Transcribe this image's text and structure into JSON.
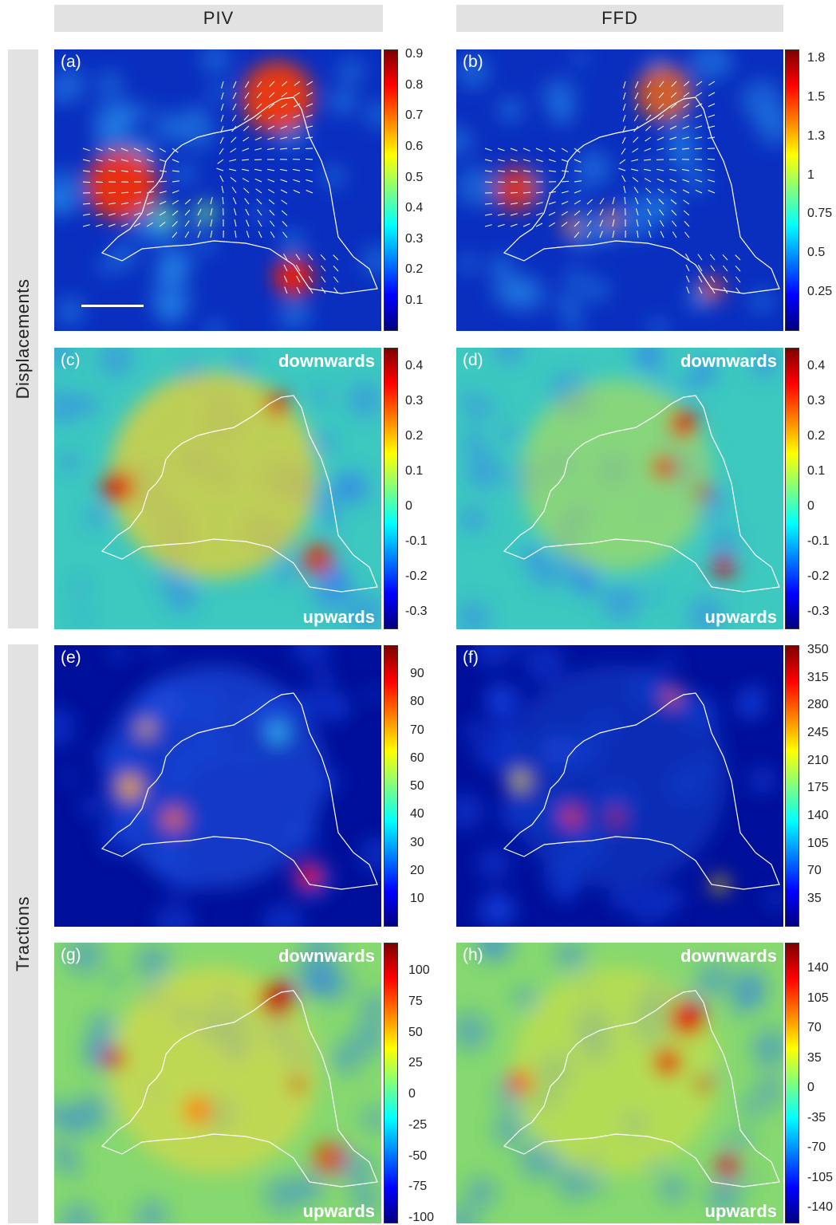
{
  "columns": [
    "PIV",
    "FFD"
  ],
  "rows": [
    "Displacements",
    "Tractions"
  ],
  "direction_labels": {
    "top": "downwards",
    "bottom": "upwards"
  },
  "panels": [
    {
      "id": "a",
      "label": "(a)",
      "type": "magnitude",
      "ticks": [
        "0.9",
        "0.8",
        "0.7",
        "0.6",
        "0.5",
        "0.4",
        "0.3",
        "0.2",
        "0.1"
      ]
    },
    {
      "id": "b",
      "label": "(b)",
      "type": "magnitude",
      "ticks": [
        "1.8",
        "1.5",
        "1.3",
        "1",
        "0.75",
        "0.5",
        "0.25"
      ]
    },
    {
      "id": "c",
      "label": "(c)",
      "type": "normal",
      "ticks": [
        "0.4",
        "0.3",
        "0.2",
        "0.1",
        "0",
        "-0.1",
        "-0.2",
        "-0.3"
      ]
    },
    {
      "id": "d",
      "label": "(d)",
      "type": "normal",
      "ticks": [
        "0.4",
        "0.3",
        "0.2",
        "0.1",
        "0",
        "-0.1",
        "-0.2",
        "-0.3"
      ]
    },
    {
      "id": "e",
      "label": "(e)",
      "type": "magnitude",
      "ticks": [
        "90",
        "80",
        "70",
        "60",
        "50",
        "40",
        "30",
        "20",
        "10"
      ]
    },
    {
      "id": "f",
      "label": "(f)",
      "type": "magnitude",
      "ticks": [
        "350",
        "315",
        "280",
        "245",
        "210",
        "175",
        "140",
        "105",
        "70",
        "35"
      ]
    },
    {
      "id": "g",
      "label": "(g)",
      "type": "normal",
      "ticks": [
        "100",
        "75",
        "50",
        "25",
        "0",
        "-25",
        "-50",
        "-75",
        "-100"
      ]
    },
    {
      "id": "h",
      "label": "(h)",
      "type": "normal",
      "ticks": [
        "140",
        "105",
        "70",
        "35",
        "0",
        "-35",
        "-70",
        "-105",
        "-140"
      ]
    }
  ],
  "colormap": [
    "#00007f",
    "#0000ff",
    "#007fff",
    "#00ffff",
    "#7fff7f",
    "#ffff00",
    "#ff7f00",
    "#ff0000",
    "#7f0000"
  ]
}
